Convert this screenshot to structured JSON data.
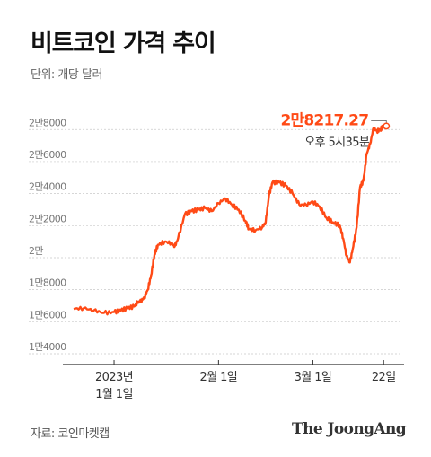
{
  "header": {
    "title": "비트코인 가격 추이",
    "unit": "단위: 개당 달러"
  },
  "footer": {
    "source": "자료: 코인마켓캡",
    "logo": "The JoongAng"
  },
  "colors": {
    "line": "#ff4a16",
    "grid": "#c9c9c9",
    "axis": "#333333"
  },
  "chart_data": {
    "type": "line",
    "title": "비트코인 가격 추이",
    "ylabel": "단위: 개당 달러",
    "ylim": [
      14000,
      28800
    ],
    "xlim": [
      "2022-12-20",
      "2023-03-27"
    ],
    "y_ticks": [
      {
        "value": 14000,
        "label": "1만4000"
      },
      {
        "value": 16000,
        "label": "1만6000"
      },
      {
        "value": 18000,
        "label": "1만8000"
      },
      {
        "value": 20000,
        "label": "2만"
      },
      {
        "value": 22000,
        "label": "2만2000"
      },
      {
        "value": 24000,
        "label": "2만4000"
      },
      {
        "value": 26000,
        "label": "2만6000"
      },
      {
        "value": 28000,
        "label": "2만8000"
      }
    ],
    "x_ticks": [
      {
        "date": "2023-01-01",
        "lines": [
          "2023년",
          "1월 1일"
        ]
      },
      {
        "date": "2023-02-01",
        "lines": [
          "2월 1일"
        ]
      },
      {
        "date": "2023-03-01",
        "lines": [
          "3월 1일"
        ]
      },
      {
        "date": "2023-03-22",
        "lines": [
          "22일"
        ]
      }
    ],
    "annotation": {
      "value_label": "2만8217.27",
      "time_label": "오후 5시35분",
      "date": "2023-03-22",
      "value": 28217.27
    },
    "series": [
      {
        "x": [
          "2022-12-20",
          "2022-12-23",
          "2022-12-26",
          "2022-12-29",
          "2023-01-01",
          "2023-01-03",
          "2023-01-05",
          "2023-01-07",
          "2023-01-08",
          "2023-01-09",
          "2023-01-10",
          "2023-01-11",
          "2023-01-12",
          "2023-01-13",
          "2023-01-14",
          "2023-01-16",
          "2023-01-18",
          "2023-01-19",
          "2023-01-20",
          "2023-01-22",
          "2023-01-24",
          "2023-01-26",
          "2023-01-28",
          "2023-01-30",
          "2023-02-01",
          "2023-02-03",
          "2023-02-05",
          "2023-02-07",
          "2023-02-09",
          "2023-02-10",
          "2023-02-12",
          "2023-02-14",
          "2023-02-15",
          "2023-02-16",
          "2023-02-17",
          "2023-02-19",
          "2023-02-21",
          "2023-02-23",
          "2023-02-25",
          "2023-02-27",
          "2023-03-01",
          "2023-03-03",
          "2023-03-05",
          "2023-03-07",
          "2023-03-09",
          "2023-03-10",
          "2023-03-11",
          "2023-03-12",
          "2023-03-13",
          "2023-03-14",
          "2023-03-15",
          "2023-03-16",
          "2023-03-17",
          "2023-03-18",
          "2023-03-19",
          "2023-03-20",
          "2023-03-21",
          "2023-03-22"
        ],
        "values": [
          16800,
          16850,
          16700,
          16550,
          16600,
          16700,
          16850,
          16950,
          17200,
          17300,
          17500,
          18000,
          18900,
          20200,
          20800,
          21000,
          20900,
          20700,
          21200,
          22700,
          22900,
          23000,
          23100,
          22900,
          23400,
          23700,
          23300,
          23000,
          22300,
          21800,
          21700,
          21900,
          22200,
          23900,
          24700,
          24700,
          24500,
          24000,
          23300,
          23300,
          23500,
          23200,
          22500,
          22200,
          22000,
          21200,
          20100,
          19700,
          20700,
          21900,
          24400,
          24800,
          26500,
          27100,
          28100,
          27900,
          28000,
          28217.27
        ]
      }
    ]
  }
}
